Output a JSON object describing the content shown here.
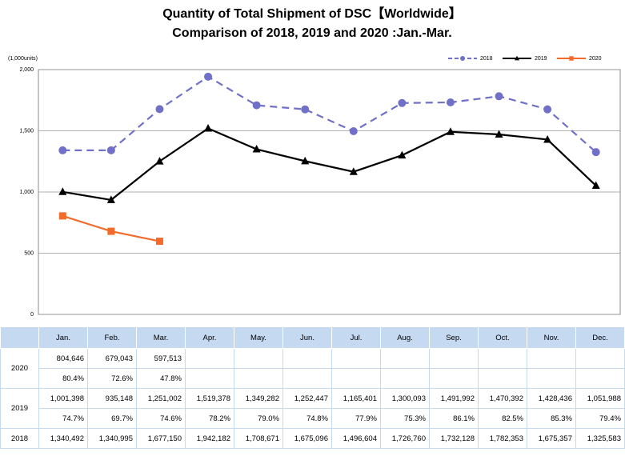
{
  "chart_data": {
    "type": "line",
    "title": "Quantity of Total Shipment of DSC【Worldwide】",
    "subtitle": "Comparison of 2018, 2019 and 2020 :Jan.-Mar.",
    "y_label": "(1,000units)",
    "categories": [
      "Jan.",
      "Feb.",
      "Mar.",
      "Apr.",
      "May.",
      "Jun.",
      "Jul.",
      "Aug.",
      "Sep.",
      "Oct.",
      "Nov.",
      "Dec."
    ],
    "series": [
      {
        "name": "2018",
        "color": "#7070c8",
        "dash": true,
        "marker": "circle",
        "values": [
          1340.492,
          1340.995,
          1677.15,
          1942.182,
          1708.671,
          1675.096,
          1496.604,
          1726.76,
          1732.128,
          1782.353,
          1675.357,
          1325.583
        ]
      },
      {
        "name": "2019",
        "color": "#000000",
        "dash": false,
        "marker": "triangle",
        "values": [
          1001.398,
          935.148,
          1251.002,
          1519.378,
          1349.282,
          1252.447,
          1165.401,
          1300.093,
          1491.992,
          1470.392,
          1428.436,
          1051.988
        ]
      },
      {
        "name": "2020",
        "color": "#f26b2a",
        "dash": false,
        "marker": "square",
        "values": [
          804.646,
          679.043,
          597.513,
          null,
          null,
          null,
          null,
          null,
          null,
          null,
          null,
          null
        ]
      }
    ],
    "ylim": [
      0,
      2000
    ],
    "yticks": [
      0,
      500,
      {
        "value": 1000,
        "label": "1,000"
      },
      {
        "value": 1500,
        "label": "1,500"
      },
      {
        "value": 2000,
        "label": "2,000"
      }
    ],
    "grid": true,
    "legend": "top-right"
  },
  "table": {
    "rows": [
      {
        "year": "2020",
        "lines": [
          [
            "804,646",
            "679,043",
            "597,513"
          ],
          [
            "80.4%",
            "72.6%",
            "47.8%"
          ]
        ]
      },
      {
        "year": "2019",
        "lines": [
          [
            "1,001,398",
            "935,148",
            "1,251,002",
            "1,519,378",
            "1,349,282",
            "1,252,447",
            "1,165,401",
            "1,300,093",
            "1,491,992",
            "1,470,392",
            "1,428,436",
            "1,051,988"
          ],
          [
            "74.7%",
            "69.7%",
            "74.6%",
            "78.2%",
            "79.0%",
            "74.8%",
            "77.9%",
            "75.3%",
            "86.1%",
            "82.5%",
            "85.3%",
            "79.4%"
          ]
        ]
      },
      {
        "year": "2018",
        "lines": [
          [
            "1,340,492",
            "1,340,995",
            "1,677,150",
            "1,942,182",
            "1,708,671",
            "1,675,096",
            "1,496,604",
            "1,726,760",
            "1,732,128",
            "1,782,353",
            "1,675,357",
            "1,325,583"
          ]
        ]
      }
    ]
  }
}
